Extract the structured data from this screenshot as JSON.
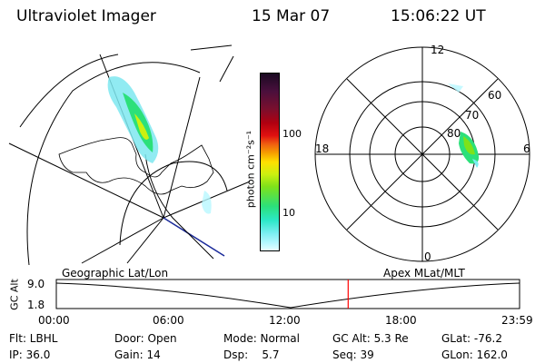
{
  "header": {
    "instrument": "Ultraviolet Imager",
    "date": "15 Mar 07",
    "time": "15:06:22 UT"
  },
  "colorbar": {
    "unit_label": "photon cm⁻²s⁻¹",
    "ticks": [
      "100",
      "10"
    ],
    "colors": [
      "#1a0a22",
      "#4a0f3c",
      "#7a0f2e",
      "#b00010",
      "#e01010",
      "#f06010",
      "#f6a000",
      "#ffe000",
      "#ccf010",
      "#7ee21a",
      "#2ce07a",
      "#2ce8c8",
      "#78eef0",
      "#b8f8ff",
      "#e8ffff"
    ]
  },
  "geo_panel": {
    "label": "Geographic Lat/Lon"
  },
  "polar_panel": {
    "label": "Apex MLat/MLT",
    "mlt_labels": {
      "top": "12",
      "left": "18",
      "right": "6",
      "bottom": "0"
    },
    "lat_labels": [
      "60",
      "70",
      "80"
    ]
  },
  "timeline": {
    "y_axis_label": "GC Alt",
    "y_ticks": [
      "9.0",
      "1.8"
    ],
    "x_ticks": [
      "00:00",
      "06:00",
      "12:00",
      "18:00",
      "23:59"
    ],
    "current_time_fraction": 0.63,
    "marker_color": "#ff0000"
  },
  "status": {
    "flt": "Flt: LBHL",
    "ip": "IP: 36.0",
    "door": "Door: Open",
    "gain": "Gain: 14",
    "mode": "Mode: Normal",
    "dsp": "Dsp:    5.7",
    "gcalt": "GC Alt: 5.3 Re",
    "seq": "Seq: 39",
    "glat": "GLat: -76.2",
    "glon": "GLon: 162.0"
  }
}
